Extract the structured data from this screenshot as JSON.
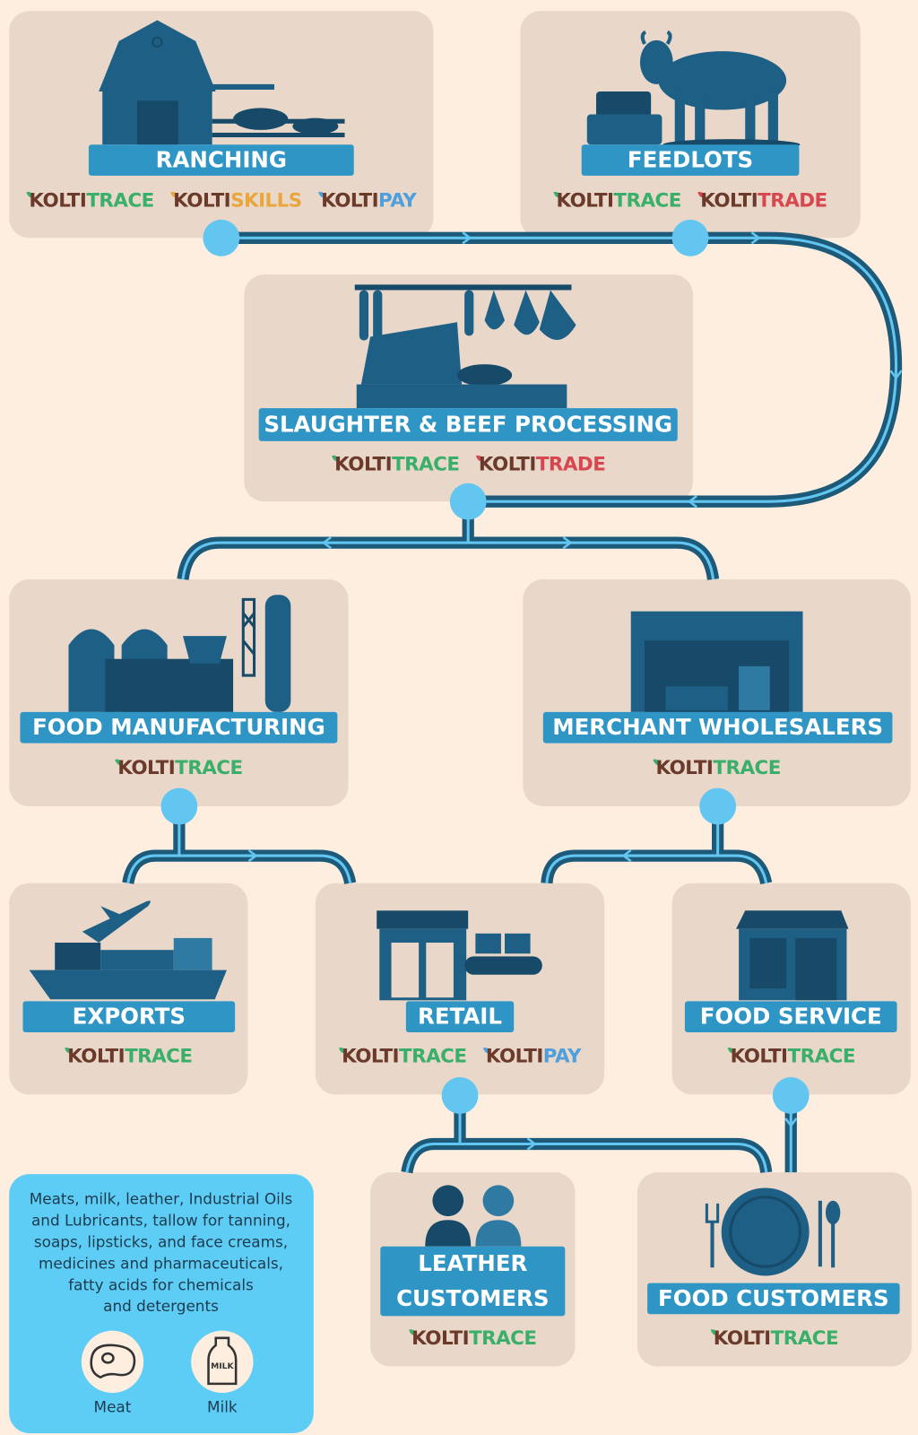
{
  "nodes": [
    {
      "label_lines": [
        "RANCHING"
      ],
      "tags": [
        {
          "brand": "KOLTI",
          "product": "TRACE",
          "color": "#3aaf6a"
        },
        {
          "brand": "KOLTI",
          "product": "SKILLS",
          "color": "#e8a63c"
        },
        {
          "brand": "KOLTI",
          "product": "PAY",
          "color": "#4f9fdc"
        }
      ]
    },
    {
      "label_lines": [
        "FEEDLOTS"
      ],
      "tags": [
        {
          "brand": "KOLTI",
          "product": "TRACE",
          "color": "#3aaf6a"
        },
        {
          "brand": "KOLTI",
          "product": "TRADE",
          "color": "#d8474f"
        }
      ]
    },
    {
      "label_lines": [
        "SLAUGHTER & BEEF PROCESSING"
      ],
      "tags": [
        {
          "brand": "KOLTI",
          "product": "TRACE",
          "color": "#3aaf6a"
        },
        {
          "brand": "KOLTI",
          "product": "TRADE",
          "color": "#d8474f"
        }
      ]
    },
    {
      "label_lines": [
        "FOOD MANUFACTURING"
      ],
      "tags": [
        {
          "brand": "KOLTI",
          "product": "TRACE",
          "color": "#3aaf6a"
        }
      ]
    },
    {
      "label_lines": [
        "MERCHANT WHOLESALERS"
      ],
      "tags": [
        {
          "brand": "KOLTI",
          "product": "TRACE",
          "color": "#3aaf6a"
        }
      ]
    },
    {
      "label_lines": [
        "EXPORTS"
      ],
      "tags": [
        {
          "brand": "KOLTI",
          "product": "TRACE",
          "color": "#3aaf6a"
        }
      ]
    },
    {
      "label_lines": [
        "RETAIL"
      ],
      "tags": [
        {
          "brand": "KOLTI",
          "product": "TRACE",
          "color": "#3aaf6a"
        },
        {
          "brand": "KOLTI",
          "product": "PAY",
          "color": "#4f9fdc"
        }
      ]
    },
    {
      "label_lines": [
        "FOOD SERVICE"
      ],
      "tags": [
        {
          "brand": "KOLTI",
          "product": "TRACE",
          "color": "#3aaf6a"
        }
      ]
    },
    {
      "label_lines": [
        "LEATHER",
        "CUSTOMERS"
      ],
      "tags": [
        {
          "brand": "KOLTI",
          "product": "TRACE",
          "color": "#3aaf6a"
        }
      ]
    },
    {
      "label_lines": [
        "FOOD CUSTOMERS"
      ],
      "tags": [
        {
          "brand": "KOLTI",
          "product": "TRACE",
          "color": "#3aaf6a"
        }
      ]
    }
  ],
  "info": {
    "lines": [
      "Meats, milk, leather, Industrial Oils",
      "and Lubricants, tallow for tanning,",
      "soaps, lipsticks, and face creams,",
      "medicines and pharmaceuticals,",
      "fatty acids for chemicals",
      "and detergents"
    ],
    "icons": [
      {
        "label": "Meat"
      },
      {
        "label": "Milk",
        "badge": "MILK"
      }
    ]
  }
}
